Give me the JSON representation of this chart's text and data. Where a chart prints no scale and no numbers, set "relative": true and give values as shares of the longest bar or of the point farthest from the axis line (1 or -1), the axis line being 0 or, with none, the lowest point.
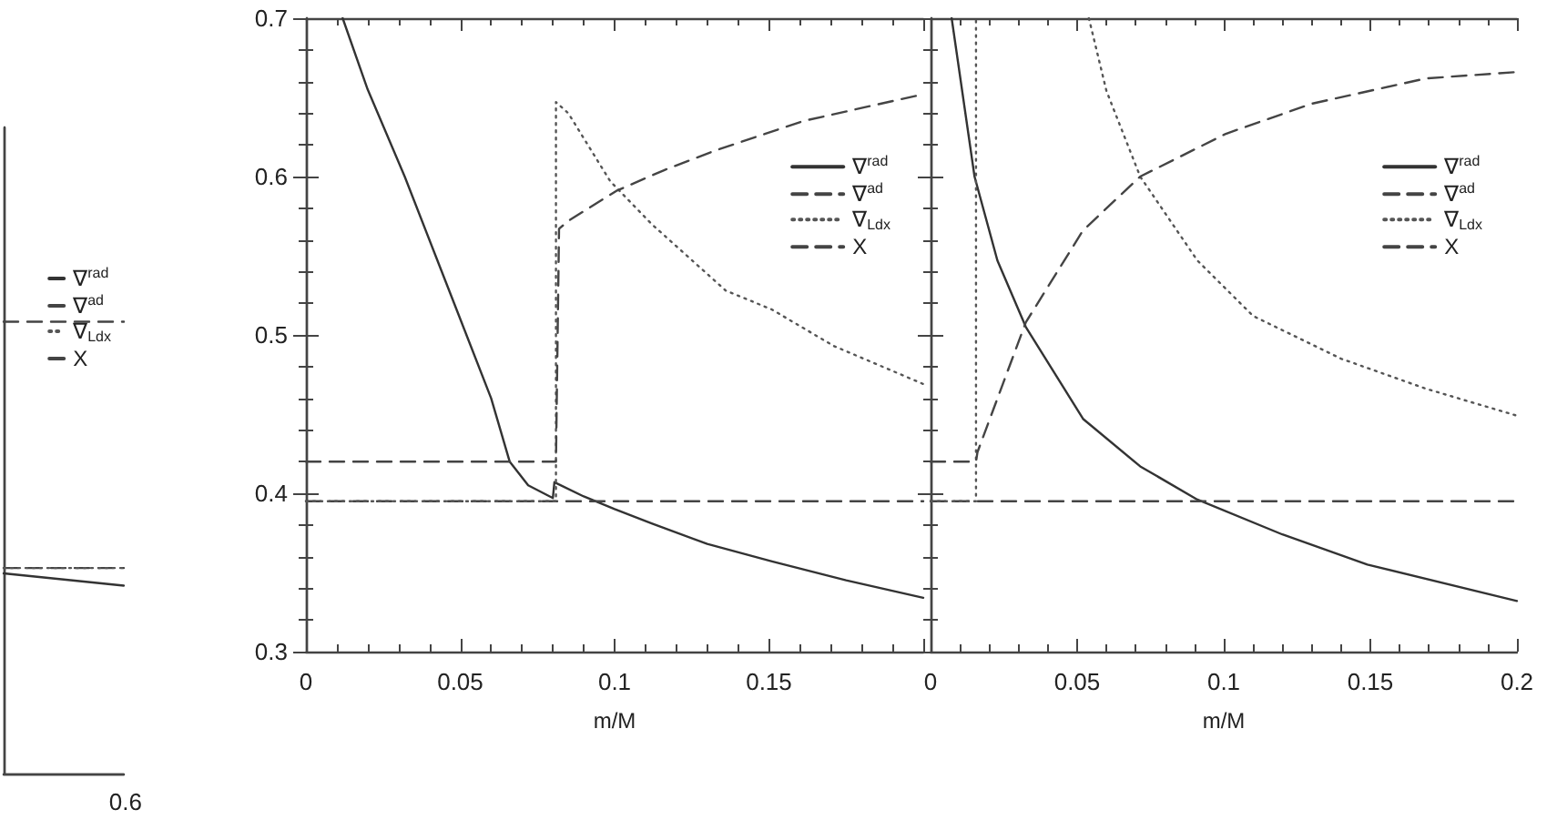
{
  "chart_data": [
    {
      "type": "line",
      "relative": true,
      "categories": [
        null,
        null
      ],
      "annotations": [
        "0.6"
      ],
      "tick_labels": false,
      "grid": false,
      "legend": "top right",
      "marker": "none",
      "series": [
        {
          "name": "∇$^{rad}$",
          "color": "#333333",
          "line_style": "solid",
          "values": [
            0.443,
            0.416
          ]
        },
        {
          "name": "∇$^{ad}$",
          "color": "#444444",
          "line_style": "dashed",
          "values": [
            0.455,
            0.455
          ]
        },
        {
          "name": "∇$_{Ldx}$",
          "color": "#555555",
          "line_style": "dotted",
          "values": [
            0.455,
            0.455
          ]
        },
        {
          "name": "X",
          "color": "#444444",
          "line_style": "dashed",
          "values": [
            1,
            1
          ]
        }
      ]
    },
    {
      "type": "line",
      "xlabel": "m/M",
      "xlim": [
        0,
        0.2
      ],
      "xticks": [
        0,
        0.05,
        0.1,
        0.15
      ],
      "ylim": [
        0.3,
        0.7
      ],
      "yticks": [
        0.3,
        0.4,
        0.5,
        0.6,
        0.7
      ],
      "grid": false,
      "legend": "top right",
      "marker": "none",
      "series": [
        {
          "name": "∇$^{rad}$",
          "color": "#333333",
          "line_style": "solid",
          "x": [
            0.0119,
            0.02,
            0.032,
            0.042,
            0.052,
            0.06,
            0.066,
            0.072,
            0.08,
            0.0805,
            0.09,
            0.1,
            0.112,
            0.13,
            0.151,
            0.175,
            0.2
          ],
          "values": [
            0.7,
            0.655,
            0.6,
            0.55,
            0.5,
            0.46,
            0.42,
            0.405,
            0.397,
            0.407,
            0.398,
            0.39,
            0.381,
            0.368,
            0.357,
            0.345,
            0.334
          ]
        },
        {
          "name": "∇$^{ad}$",
          "color": "#444444",
          "line_style": "dashed",
          "x": [
            0,
            0.2
          ],
          "values": [
            0.395,
            0.395
          ]
        },
        {
          "name": "∇$_{Ldx}$",
          "color": "#555555",
          "line_style": "dotted",
          "x": [
            0,
            0.081,
            0.081,
            0.085,
            0.0986,
            0.112,
            0.136,
            0.151,
            0.171,
            0.2
          ],
          "values": [
            0.395,
            0.395,
            0.647,
            0.64,
            0.597,
            0.57,
            0.528,
            0.516,
            0.493,
            0.469
          ]
        },
        {
          "name": "X",
          "color": "#444444",
          "line_style": "dashed",
          "x": [
            0,
            0.081,
            0.082,
            0.085,
            0.1006,
            0.116,
            0.132,
            0.161,
            0.2
          ],
          "values": [
            0.42,
            0.42,
            0.567,
            0.572,
            0.591,
            0.604,
            0.616,
            0.635,
            0.652
          ]
        }
      ]
    },
    {
      "type": "line",
      "xlabel": "m/M",
      "xlim": [
        0,
        0.2
      ],
      "xticks": [
        0,
        0.05,
        0.1,
        0.15,
        0.2
      ],
      "ylim": [
        0.3,
        0.7
      ],
      "yticks": [
        0.3,
        0.4,
        0.5,
        0.6,
        0.7
      ],
      "tick_labels": "x",
      "grid": false,
      "legend": "top right",
      "marker": "none",
      "series": [
        {
          "name": "∇$^{rad}$",
          "color": "#333333",
          "line_style": "solid",
          "x": [
            0.0072,
            0.015,
            0.0228,
            0.0325,
            0.052,
            0.0715,
            0.091,
            0.12,
            0.149,
            0.2
          ],
          "values": [
            0.7,
            0.6,
            0.547,
            0.505,
            0.447,
            0.417,
            0.396,
            0.374,
            0.355,
            0.332
          ]
        },
        {
          "name": "∇$^{ad}$",
          "color": "#444444",
          "line_style": "dashed",
          "x": [
            0,
            0.2
          ],
          "values": [
            0.395,
            0.395
          ]
        },
        {
          "name": "∇$_{Ldx}$",
          "color": "#555555",
          "line_style": "dotted",
          "x": [
            0,
            0.0155,
            0.0155,
            0.03,
            0.054,
            0.06,
            0.0715,
            0.091,
            0.11,
            0.14,
            0.169,
            0.2
          ],
          "values": [
            0.395,
            0.395,
            0.7,
            null,
            0.7,
            0.654,
            0.6,
            0.547,
            0.512,
            0.485,
            0.466,
            0.449
          ]
        },
        {
          "name": "X",
          "color": "#444444",
          "line_style": "dashed",
          "x": [
            0,
            0.0155,
            0.016,
            0.0325,
            0.052,
            0.0715,
            0.1007,
            0.13,
            0.169,
            0.2
          ],
          "values": [
            0.42,
            0.42,
            0.426,
            0.508,
            0.566,
            0.6,
            0.627,
            0.646,
            0.662,
            0.666
          ]
        }
      ]
    }
  ]
}
